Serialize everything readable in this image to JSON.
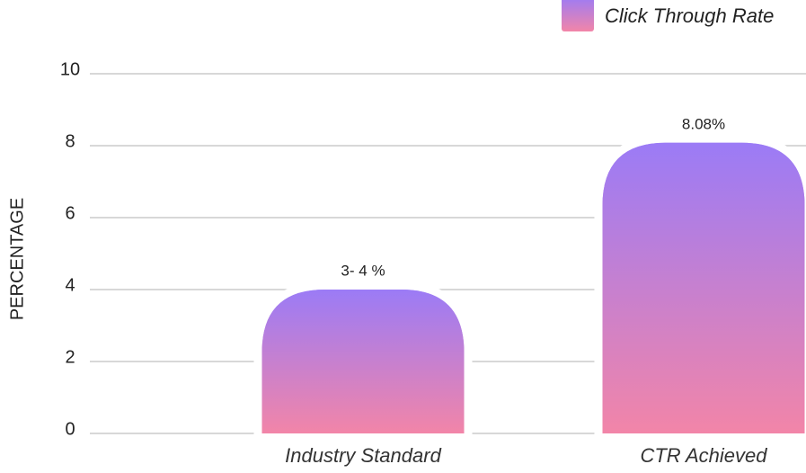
{
  "chart_data": {
    "type": "bar",
    "y_label": "PERCENTAGE",
    "categories": [
      "Industry Standard",
      "CTR Achieved"
    ],
    "series": [
      {
        "name": "Click Through Rate",
        "gradient": [
          "#9b7bf6",
          "#f285a8"
        ],
        "values": [
          4,
          8.08
        ],
        "value_labels": [
          "3- 4 %",
          "8.08%"
        ]
      }
    ],
    "ylim": [
      0,
      10
    ],
    "yticks": [
      0,
      2,
      4,
      6,
      8,
      10
    ],
    "grid": true,
    "legend": "top-right"
  }
}
